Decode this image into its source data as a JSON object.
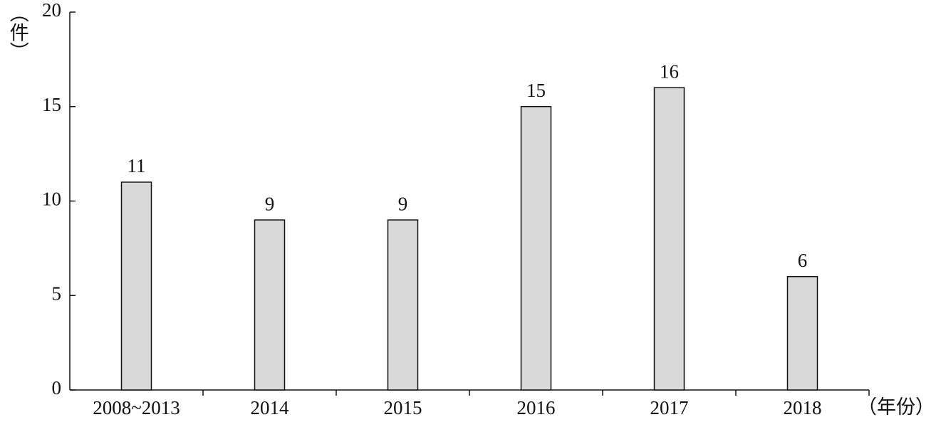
{
  "chart_data": {
    "type": "bar",
    "y_label": "（件）",
    "x_label": "（年份）",
    "categories": [
      "2008~2013",
      "2014",
      "2015",
      "2016",
      "2017",
      "2018"
    ],
    "values": [
      11,
      9,
      9,
      15,
      16,
      6
    ],
    "color": "#d9d9d9",
    "ylim": [
      0,
      20
    ],
    "yticks": [
      0,
      5,
      10,
      15,
      20
    ],
    "grid": false
  }
}
